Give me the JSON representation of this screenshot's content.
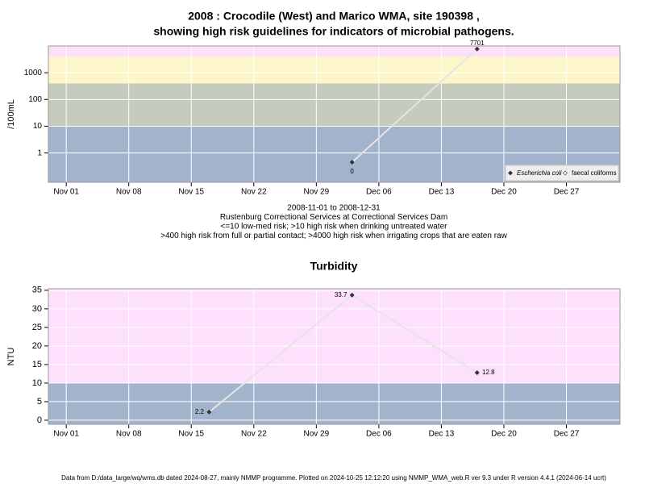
{
  "chart_data": [
    {
      "type": "line",
      "title": "2008 : Crocodile (West) and Marico WMA, site 190398 ,",
      "subtitle": "showing high risk guidelines for indicators of microbial pathogens.",
      "ylabel": "/100mL",
      "log_y": true,
      "grid": true,
      "legend": "bottomright",
      "caption": [
        "2008-11-01 to 2008-12-31",
        "Rustenburg Correctional Services at Correctional Services Dam",
        "<=10 low-med risk; >10 high risk when drinking untreated water",
        ">400 high risk from full or partial contact; >4000 high risk when irrigating crops that are eaten raw"
      ],
      "x": [
        "2008-12-03",
        "2008-12-17"
      ],
      "series": [
        {
          "name": "Escherichia coli",
          "color": "#333333",
          "values": [
            0.45,
            7701
          ],
          "value_labels": [
            "0",
            "7701"
          ]
        },
        {
          "name": "faecal coliforms",
          "color": "#ffffff",
          "values": [
            null,
            null
          ]
        }
      ],
      "bands": [
        {
          "from": 0.08,
          "to": 10,
          "color": "#a2b4cc"
        },
        {
          "from": 10,
          "to": 400,
          "color": "#c5cbbd"
        },
        {
          "from": 400,
          "to": 4000,
          "color": "#fdf6c8"
        },
        {
          "from": 4000,
          "to": 10000,
          "color": "#fde0fc"
        }
      ],
      "xlim": [
        "2008-10-30",
        "2009-01-02"
      ],
      "xticks": [
        {
          "value": "2008-11-01",
          "label": "Nov 01"
        },
        {
          "value": "2008-11-08",
          "label": "Nov 08"
        },
        {
          "value": "2008-11-15",
          "label": "Nov 15"
        },
        {
          "value": "2008-11-22",
          "label": "Nov 22"
        },
        {
          "value": "2008-11-29",
          "label": "Nov 29"
        },
        {
          "value": "2008-12-06",
          "label": "Dec 06"
        },
        {
          "value": "2008-12-13",
          "label": "Dec 13"
        },
        {
          "value": "2008-12-20",
          "label": "Dec 20"
        },
        {
          "value": "2008-12-27",
          "label": "Dec 27"
        }
      ],
      "ylim": [
        0.08,
        10000
      ],
      "yticks": [
        1,
        10,
        100,
        1000
      ]
    },
    {
      "type": "line",
      "title": "Turbidity",
      "ylabel": "NTU",
      "log_y": false,
      "grid": true,
      "x": [
        "2008-11-17",
        "2008-12-03",
        "2008-12-17"
      ],
      "series": [
        {
          "name": "Turbidity",
          "color": "#333333",
          "values": [
            2.2,
            33.7,
            12.8
          ]
        }
      ],
      "bands": [
        {
          "from": -1.1,
          "to": 10,
          "color": "#a2b4cc"
        },
        {
          "from": 10,
          "to": 35.4,
          "color": "#fde0fc"
        }
      ],
      "xlim": [
        "2008-10-30",
        "2009-01-02"
      ],
      "xticks": [
        {
          "value": "2008-11-01",
          "label": "Nov 01"
        },
        {
          "value": "2008-11-08",
          "label": "Nov 08"
        },
        {
          "value": "2008-11-15",
          "label": "Nov 15"
        },
        {
          "value": "2008-11-22",
          "label": "Nov 22"
        },
        {
          "value": "2008-11-29",
          "label": "Nov 29"
        },
        {
          "value": "2008-12-06",
          "label": "Dec 06"
        },
        {
          "value": "2008-12-13",
          "label": "Dec 13"
        },
        {
          "value": "2008-12-20",
          "label": "Dec 20"
        },
        {
          "value": "2008-12-27",
          "label": "Dec 27"
        }
      ],
      "ylim": [
        -1.1,
        35.4
      ],
      "yticks": [
        0,
        5,
        10,
        15,
        20,
        25,
        30,
        35
      ]
    }
  ],
  "footer": "Data from D:/data_large/wq/wms.db dated 2024-08-27, mainly NMMP programme. Plotted on 2024-10-25 12:12:20 using NMMP_WMA_web.R ver 9.3 under R version 4.4.1 (2024-06-14 ucrt)"
}
